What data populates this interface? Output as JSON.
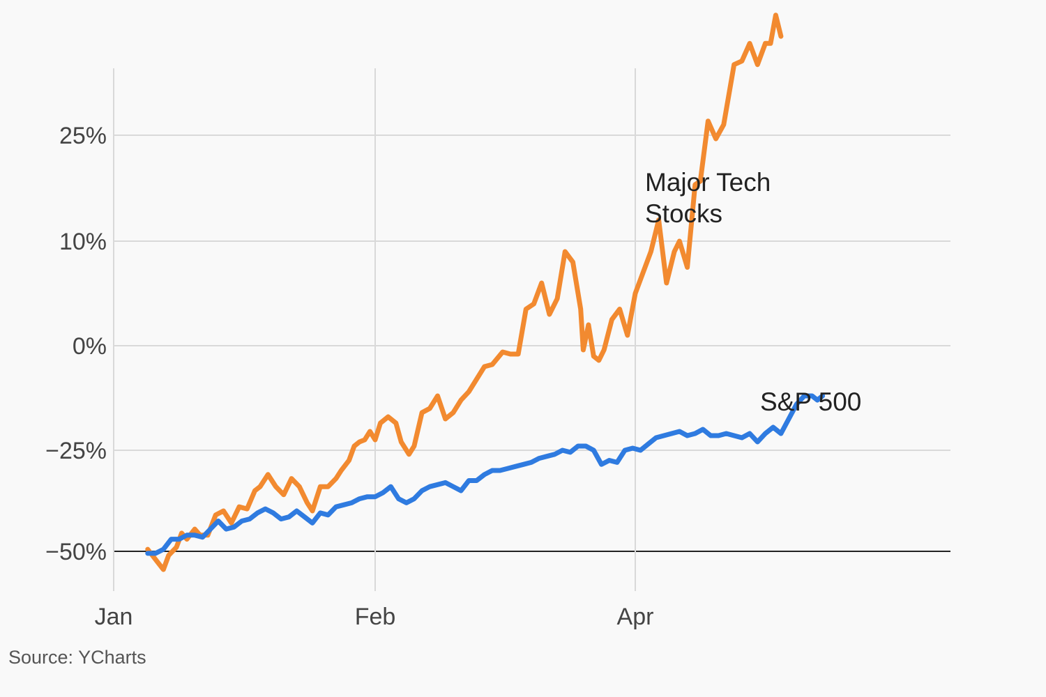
{
  "chart_data": {
    "type": "line",
    "title": "",
    "xlabel": "",
    "ylabel": "",
    "x_ticks": [
      {
        "label": "Jan",
        "x": 0
      },
      {
        "label": "Feb",
        "x": 1
      },
      {
        "label": "Apr",
        "x": 2
      }
    ],
    "y_ticks": [
      {
        "label": "25%",
        "value": 25
      },
      {
        "label": "10%",
        "value": 10
      },
      {
        "label": "0%",
        "value": 0
      },
      {
        "label": "−25%",
        "value": -25
      },
      {
        "label": "−50%",
        "value": -50
      }
    ],
    "series": [
      {
        "name": "Major Tech Stocks",
        "label_lines": [
          "Major Tech",
          "Stocks"
        ],
        "color": "#f28a30",
        "points": [
          [
            0.13,
            -49.5
          ],
          [
            0.16,
            -52
          ],
          [
            0.19,
            -54.5
          ],
          [
            0.21,
            -51
          ],
          [
            0.24,
            -49
          ],
          [
            0.26,
            -45.5
          ],
          [
            0.28,
            -47
          ],
          [
            0.31,
            -44.5
          ],
          [
            0.33,
            -46
          ],
          [
            0.36,
            -46
          ],
          [
            0.39,
            -41
          ],
          [
            0.42,
            -40
          ],
          [
            0.45,
            -43
          ],
          [
            0.48,
            -39
          ],
          [
            0.51,
            -39.5
          ],
          [
            0.54,
            -35
          ],
          [
            0.56,
            -34
          ],
          [
            0.59,
            -31
          ],
          [
            0.62,
            -34
          ],
          [
            0.65,
            -36
          ],
          [
            0.68,
            -32
          ],
          [
            0.71,
            -34
          ],
          [
            0.74,
            -38
          ],
          [
            0.76,
            -40
          ],
          [
            0.79,
            -34
          ],
          [
            0.82,
            -34
          ],
          [
            0.85,
            -32
          ],
          [
            0.87,
            -30
          ],
          [
            0.9,
            -27.5
          ],
          [
            0.92,
            -24
          ],
          [
            0.94,
            -23
          ],
          [
            0.96,
            -22.5
          ],
          [
            0.98,
            -20.5
          ],
          [
            1.0,
            -22.5
          ],
          [
            1.02,
            -18.5
          ],
          [
            1.05,
            -17
          ],
          [
            1.08,
            -18.5
          ],
          [
            1.1,
            -23
          ],
          [
            1.13,
            -26
          ],
          [
            1.15,
            -24
          ],
          [
            1.18,
            -16
          ],
          [
            1.21,
            -15
          ],
          [
            1.24,
            -12
          ],
          [
            1.27,
            -17.5
          ],
          [
            1.3,
            -16
          ],
          [
            1.33,
            -13
          ],
          [
            1.36,
            -11
          ],
          [
            1.39,
            -8
          ],
          [
            1.42,
            -5
          ],
          [
            1.45,
            -4.5
          ],
          [
            1.49,
            -1.5
          ],
          [
            1.52,
            -2
          ],
          [
            1.55,
            -2
          ],
          [
            1.58,
            3.5
          ],
          [
            1.61,
            4
          ],
          [
            1.64,
            6
          ],
          [
            1.67,
            3
          ],
          [
            1.7,
            4.5
          ],
          [
            1.73,
            9
          ],
          [
            1.76,
            8
          ],
          [
            1.79,
            3.5
          ],
          [
            1.8,
            -1
          ],
          [
            1.82,
            2
          ],
          [
            1.84,
            -2.5
          ],
          [
            1.86,
            -3.5
          ],
          [
            1.88,
            -1
          ],
          [
            1.91,
            2.5
          ],
          [
            1.94,
            3.5
          ],
          [
            1.97,
            1
          ],
          [
            2.0,
            5
          ],
          [
            2.03,
            7
          ],
          [
            2.06,
            9
          ],
          [
            2.09,
            13
          ],
          [
            2.12,
            6
          ],
          [
            2.15,
            9
          ],
          [
            2.17,
            10
          ],
          [
            2.2,
            7.5
          ],
          [
            2.23,
            18
          ],
          [
            2.25,
            18.5
          ],
          [
            2.28,
            27
          ],
          [
            2.31,
            24.5
          ],
          [
            2.34,
            26.5
          ],
          [
            2.38,
            35
          ],
          [
            2.41,
            35.5
          ],
          [
            2.44,
            38
          ],
          [
            2.47,
            35
          ],
          [
            2.5,
            38
          ],
          [
            2.52,
            38
          ],
          [
            2.54,
            42
          ],
          [
            2.56,
            39
          ]
        ]
      },
      {
        "name": "S&P 500",
        "label_lines": [
          "S&P 500"
        ],
        "color": "#2f7be0",
        "points": [
          [
            0.13,
            -50.5
          ],
          [
            0.16,
            -50.5
          ],
          [
            0.19,
            -49.5
          ],
          [
            0.22,
            -47
          ],
          [
            0.25,
            -47
          ],
          [
            0.28,
            -46
          ],
          [
            0.31,
            -46
          ],
          [
            0.34,
            -46.5
          ],
          [
            0.37,
            -44.5
          ],
          [
            0.4,
            -42.5
          ],
          [
            0.43,
            -44.5
          ],
          [
            0.46,
            -44
          ],
          [
            0.49,
            -42.5
          ],
          [
            0.52,
            -42
          ],
          [
            0.55,
            -40.5
          ],
          [
            0.58,
            -39.5
          ],
          [
            0.61,
            -40.5
          ],
          [
            0.64,
            -42
          ],
          [
            0.67,
            -41.5
          ],
          [
            0.7,
            -40
          ],
          [
            0.73,
            -41.5
          ],
          [
            0.76,
            -43
          ],
          [
            0.79,
            -40.5
          ],
          [
            0.82,
            -41
          ],
          [
            0.85,
            -39
          ],
          [
            0.88,
            -38.5
          ],
          [
            0.91,
            -38
          ],
          [
            0.94,
            -37
          ],
          [
            0.97,
            -36.5
          ],
          [
            1.0,
            -36.5
          ],
          [
            1.03,
            -35.5
          ],
          [
            1.06,
            -34
          ],
          [
            1.09,
            -37
          ],
          [
            1.12,
            -38
          ],
          [
            1.15,
            -37
          ],
          [
            1.18,
            -35
          ],
          [
            1.21,
            -34
          ],
          [
            1.24,
            -33.5
          ],
          [
            1.27,
            -33
          ],
          [
            1.3,
            -34
          ],
          [
            1.33,
            -35
          ],
          [
            1.36,
            -32.5
          ],
          [
            1.39,
            -32.5
          ],
          [
            1.42,
            -31
          ],
          [
            1.45,
            -30
          ],
          [
            1.48,
            -30
          ],
          [
            1.51,
            -29.5
          ],
          [
            1.54,
            -29
          ],
          [
            1.57,
            -28.5
          ],
          [
            1.6,
            -28
          ],
          [
            1.63,
            -27
          ],
          [
            1.66,
            -26.5
          ],
          [
            1.69,
            -26
          ],
          [
            1.72,
            -25
          ],
          [
            1.75,
            -25.5
          ],
          [
            1.78,
            -24
          ],
          [
            1.81,
            -24
          ],
          [
            1.84,
            -25
          ],
          [
            1.87,
            -28.5
          ],
          [
            1.9,
            -27.5
          ],
          [
            1.93,
            -28
          ],
          [
            1.96,
            -25
          ],
          [
            1.99,
            -24.5
          ],
          [
            2.02,
            -25
          ],
          [
            2.05,
            -23.5
          ],
          [
            2.08,
            -22
          ],
          [
            2.11,
            -21.5
          ],
          [
            2.14,
            -21
          ],
          [
            2.17,
            -20.5
          ],
          [
            2.2,
            -21.5
          ],
          [
            2.23,
            -21
          ],
          [
            2.26,
            -20
          ],
          [
            2.29,
            -21.5
          ],
          [
            2.32,
            -21.5
          ],
          [
            2.35,
            -21
          ],
          [
            2.38,
            -21.5
          ],
          [
            2.41,
            -22
          ],
          [
            2.44,
            -21
          ],
          [
            2.47,
            -23
          ],
          [
            2.5,
            -21
          ],
          [
            2.53,
            -19.5
          ],
          [
            2.56,
            -21
          ],
          [
            2.59,
            -17.5
          ],
          [
            2.62,
            -14
          ],
          [
            2.65,
            -12
          ],
          [
            2.68,
            -12
          ],
          [
            2.7,
            -13
          ],
          [
            2.72,
            -12
          ]
        ]
      }
    ],
    "ylim": [
      -58,
      42
    ],
    "baseline": -50,
    "grid": true,
    "source": "Source: YCharts"
  }
}
